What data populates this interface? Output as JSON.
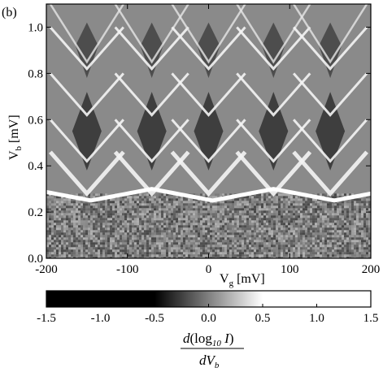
{
  "panel_label": "(b)",
  "chart_data": {
    "type": "heatmap",
    "title": "",
    "x": {
      "symbol": "V",
      "subscript": "g",
      "unit": "[mV]",
      "range": [
        -200,
        200
      ],
      "ticks": [
        -200,
        -100,
        0,
        100,
        200
      ],
      "tick_labels": [
        "-200",
        "-100",
        "0",
        "100",
        "200"
      ]
    },
    "y": {
      "symbol": "V",
      "subscript": "b",
      "unit": "[mV]",
      "range": [
        0.0,
        1.1
      ],
      "ticks": [
        0.0,
        0.2,
        0.4,
        0.6,
        0.8,
        1.0
      ],
      "tick_labels": [
        "0.0",
        "0.2",
        "0.4",
        "0.6",
        "0.8",
        "1.0"
      ]
    },
    "colorbar": {
      "range": [
        -1.5,
        1.5
      ],
      "ticks": [
        -1.5,
        -1.0,
        -0.5,
        0.0,
        0.5,
        1.0,
        1.5
      ],
      "tick_labels": [
        "-1.5",
        "-1.0",
        "-0.5",
        "0.0",
        "0.5",
        "1.0",
        "1.5"
      ],
      "colormap": [
        "#000000",
        "#ffffff"
      ],
      "quantity": {
        "numerator_d": "d",
        "log_text": "log",
        "log_subscript": "10",
        "current": "I",
        "denominator_d": "dV",
        "denominator_subscript": "b"
      }
    },
    "features": {
      "coulomb_diamond_centers_mV": [
        -150,
        -70,
        0,
        80,
        150
      ],
      "diamond_tip_levels_mV": [
        0.28,
        0.42,
        0.62,
        0.82
      ],
      "noise_floor_below_mV": 0.28,
      "grid": false,
      "legend": "none"
    }
  }
}
